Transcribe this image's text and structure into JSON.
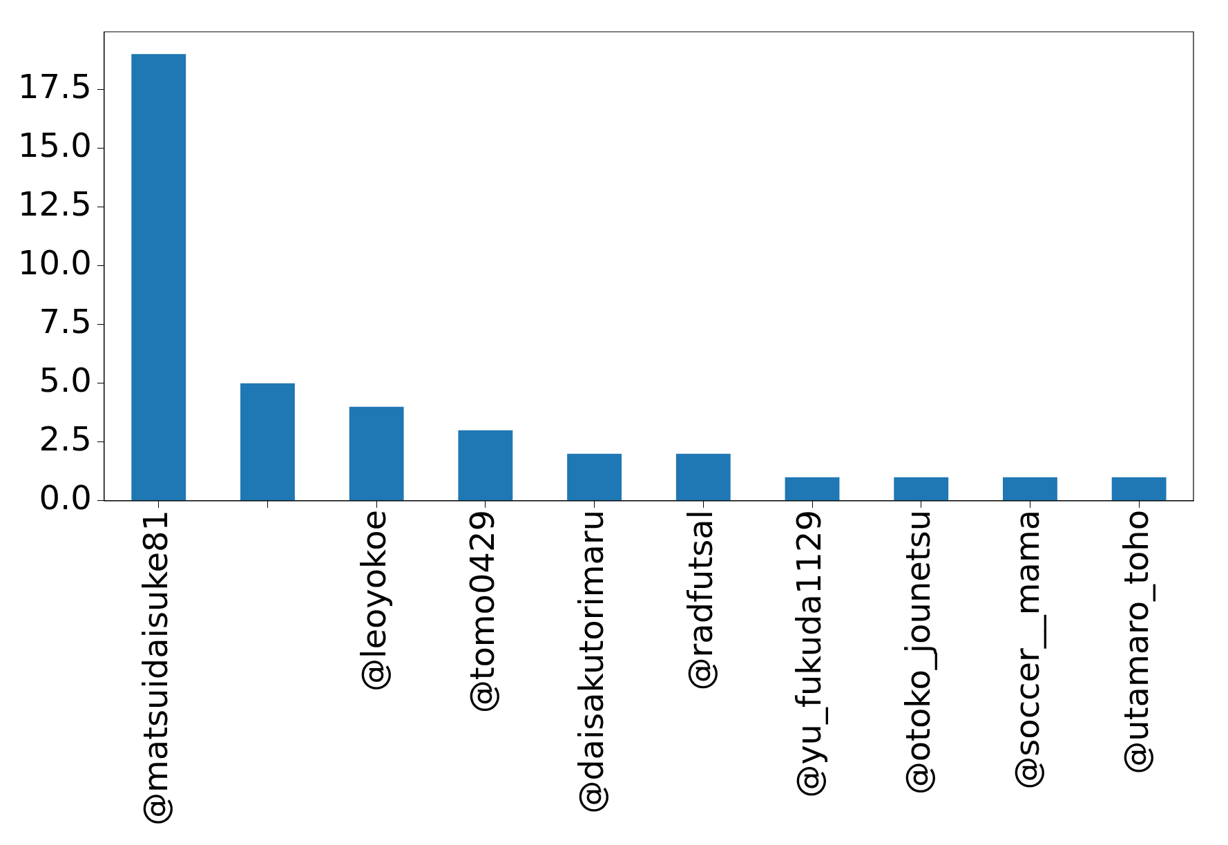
{
  "chart_data": {
    "type": "bar",
    "categories": [
      "@matsuidaisuke81",
      null,
      "@leoyokoe",
      "@tomo0429",
      "@daisakutorimaru",
      "@radfutsal",
      "@yu_fukuda1129",
      "@otoko_jounetsu",
      "@soccer__mama",
      "@utamaro_toho"
    ],
    "values": [
      19,
      5,
      4,
      3,
      2,
      2,
      1,
      1,
      1,
      1
    ],
    "color": "#1f77b4",
    "ylim": [
      0,
      19.95
    ],
    "yticks": [
      {
        "value": 0,
        "label": "0.0"
      },
      {
        "value": 2.5,
        "label": "2.5"
      },
      {
        "value": 5,
        "label": "5.0"
      },
      {
        "value": 7.5,
        "label": "7.5"
      },
      {
        "value": 10,
        "label": "10.0"
      },
      {
        "value": 12.5,
        "label": "12.5"
      },
      {
        "value": 15,
        "label": "15.0"
      },
      {
        "value": 17.5,
        "label": "17.5"
      }
    ],
    "grid": false,
    "legend": false
  }
}
